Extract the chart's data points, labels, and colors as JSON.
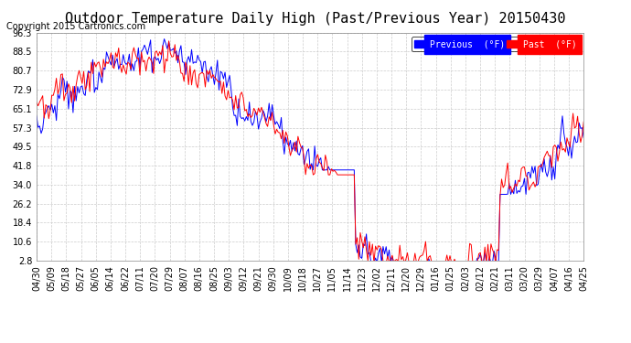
{
  "title": "Outdoor Temperature Daily High (Past/Previous Year) 20150430",
  "copyright": "Copyright 2015 Cartronics.com",
  "legend_labels": [
    "Previous  (°F)",
    "Past  (°F)"
  ],
  "yticks": [
    2.8,
    10.6,
    18.4,
    26.2,
    34.0,
    41.8,
    49.5,
    57.3,
    65.1,
    72.9,
    80.7,
    88.5,
    96.3
  ],
  "xtick_labels": [
    "04/30",
    "05/09",
    "05/18",
    "05/27",
    "06/05",
    "06/14",
    "06/22",
    "07/11",
    "07/20",
    "07/29",
    "08/07",
    "08/16",
    "08/25",
    "09/03",
    "09/12",
    "09/21",
    "09/30",
    "10/09",
    "10/18",
    "10/27",
    "11/05",
    "11/14",
    "11/23",
    "12/02",
    "12/11",
    "12/20",
    "12/29",
    "01/16",
    "01/25",
    "02/03",
    "02/12",
    "02/21",
    "03/11",
    "03/20",
    "03/29",
    "04/07",
    "04/16",
    "04/25"
  ],
  "ylim": [
    2.8,
    96.3
  ],
  "bg_color": "#ffffff",
  "grid_color": "#cccccc",
  "line_color_prev": "blue",
  "line_color_past": "red",
  "title_fontsize": 11,
  "copyright_fontsize": 7,
  "tick_labelsize": 7,
  "n_days": 361
}
